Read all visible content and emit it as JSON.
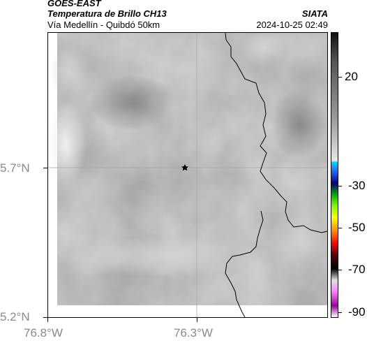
{
  "header": {
    "satellite": "GOES-EAST",
    "product": "Temperatura de Brillo CH13",
    "route": "Vía Medellín - Quibdó 50km",
    "organization": "SIATA",
    "timestamp": "2024-10-25 02:49"
  },
  "axes": {
    "lat_ticks": [
      "5.7°N",
      "5.2°N"
    ],
    "lon_ticks": [
      "76.8°W",
      "76.3°W"
    ]
  },
  "colorbar": {
    "labels": [
      "20",
      "-30",
      "-50",
      "-70",
      "-90"
    ]
  },
  "colors": {
    "cloud_top_gray": "#8c8c8c",
    "border_line": "#000000",
    "grid_line": "#aaaaaa"
  },
  "markers": {
    "location_icon": "star-icon"
  }
}
